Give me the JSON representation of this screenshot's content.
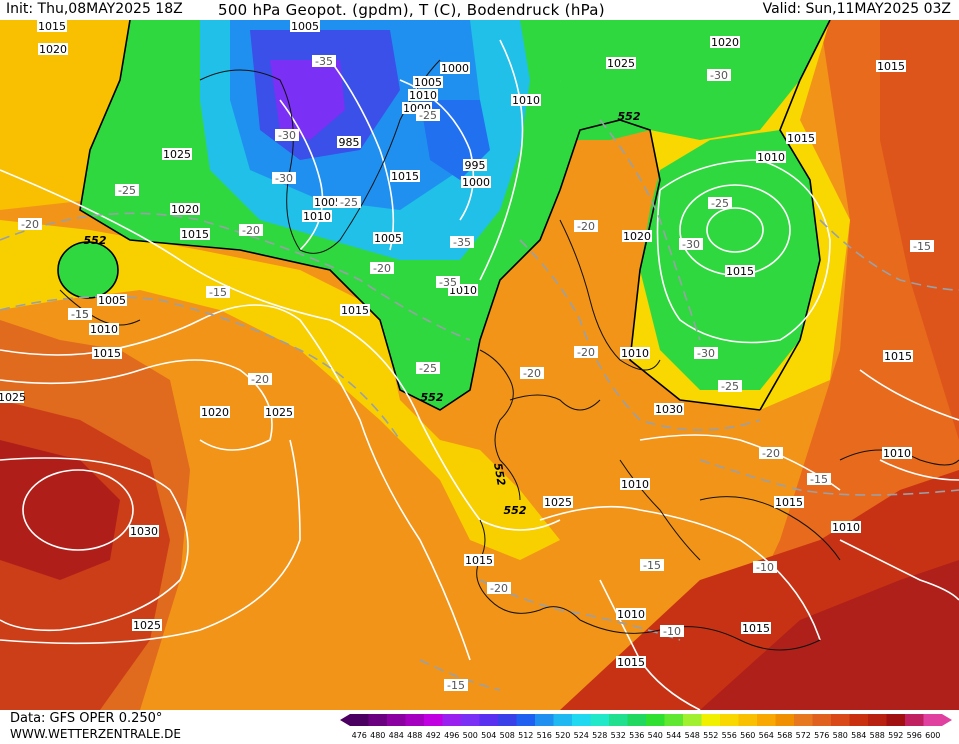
{
  "header": {
    "init": "Init: Thu,08MAY2025 18Z",
    "title": "500 hPa Geopot. (gpdm), T (C), Bodendruck (hPa)",
    "valid": "Valid: Sun,11MAY2025 03Z"
  },
  "footer": {
    "data_source": "Data: GFS OPER 0.250°",
    "website": "WWW.WETTERZENTRALE.DE"
  },
  "legend": {
    "values": [
      "476",
      "480",
      "484",
      "488",
      "492",
      "496",
      "500",
      "504",
      "508",
      "512",
      "516",
      "520",
      "524",
      "528",
      "532",
      "536",
      "540",
      "544",
      "548",
      "552",
      "556",
      "560",
      "564",
      "568",
      "572",
      "576",
      "580",
      "584",
      "588",
      "592",
      "596",
      "600"
    ],
    "colors": [
      "#4b0061",
      "#6a007f",
      "#8a00a0",
      "#a500c0",
      "#c000e0",
      "#9a20f0",
      "#7a30f5",
      "#5a30f0",
      "#3a40e8",
      "#2060f0",
      "#2090f0",
      "#20b8f0",
      "#20d8f0",
      "#20e8c8",
      "#20e090",
      "#20d860",
      "#30e030",
      "#60e830",
      "#a0f030",
      "#f0f000",
      "#f8d800",
      "#f8c000",
      "#f8a800",
      "#f09000",
      "#e87820",
      "#e06020",
      "#d84818",
      "#c83010",
      "#b82010",
      "#a01010",
      "#c02060",
      "#e040a0"
    ]
  },
  "pressure_labels": [
    "1005",
    "1000",
    "1005",
    "1010",
    "1000",
    "985",
    "995",
    "1000",
    "1015",
    "1010",
    "1005",
    "1005",
    "1015",
    "1020",
    "1020",
    "1025",
    "1030",
    "1015",
    "1010",
    "1020",
    "1015",
    "1015",
    "1010",
    "1025",
    "1020",
    "1025",
    "1010",
    "1015",
    "1010",
    "1015",
    "1020",
    "1015",
    "1010",
    "1030",
    "1025",
    "1010",
    "1015",
    "1015",
    "1010",
    "1010",
    "1015",
    "1025",
    "1010",
    "1015",
    "1005",
    "1025",
    "1015"
  ],
  "temp_labels": [
    "-35",
    "-25",
    "-30",
    "-30",
    "-25",
    "-20",
    "-25",
    "-20",
    "-15",
    "-15",
    "-20",
    "-35",
    "-35",
    "-25",
    "-20",
    "-20",
    "-20",
    "-20",
    "-25",
    "-30",
    "-30",
    "-25",
    "-15",
    "-20",
    "-15",
    "-15",
    "-10",
    "-10",
    "-15",
    "-20",
    "-15",
    "-30"
  ],
  "geopot_labels": [
    "552",
    "552",
    "552",
    "552",
    "552"
  ]
}
